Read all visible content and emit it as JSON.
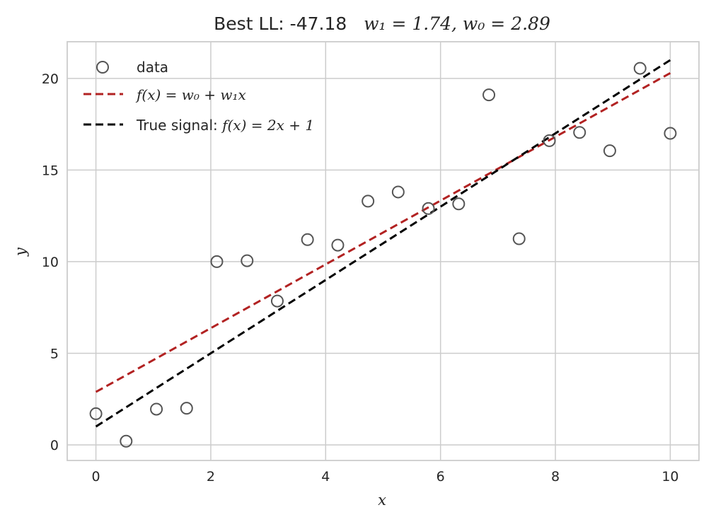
{
  "chart_data": {
    "type": "scatter",
    "title": {
      "prefix": "Best LL: -47.18   ",
      "formula": "w₁ = 1.74, w₀ = 2.89"
    },
    "xlabel": "x",
    "ylabel": "y",
    "xlim": [
      -0.5,
      10.5
    ],
    "ylim": [
      -0.85,
      22.0
    ],
    "xticks": [
      0,
      2,
      4,
      6,
      8,
      10
    ],
    "yticks": [
      0,
      5,
      10,
      15,
      20
    ],
    "grid": true,
    "legend_position": "top-left",
    "series": [
      {
        "name": "data",
        "kind": "scatter",
        "color": "#555555",
        "x": [
          0.0,
          0.526,
          1.053,
          1.579,
          2.105,
          2.632,
          3.158,
          3.684,
          4.211,
          4.737,
          5.263,
          5.789,
          6.316,
          6.842,
          7.368,
          7.895,
          8.421,
          8.947,
          9.474,
          10.0
        ],
        "y": [
          1.7,
          0.2,
          1.95,
          2.0,
          10.0,
          10.05,
          7.85,
          11.2,
          10.9,
          13.3,
          13.8,
          12.9,
          13.15,
          19.1,
          11.25,
          16.6,
          17.05,
          16.05,
          20.55,
          17.0
        ]
      },
      {
        "name": "f(x) = w₀ + w₁x",
        "kind": "line",
        "dash": "dashed",
        "color": "#b22222",
        "x": [
          0,
          10
        ],
        "y": [
          2.89,
          20.29
        ]
      },
      {
        "name": "True signal: f(x) = 2x + 1",
        "kind": "line",
        "dash": "dashed",
        "color": "#000000",
        "x": [
          0,
          10
        ],
        "y": [
          1,
          21
        ]
      }
    ],
    "legend": {
      "data_label": "data",
      "fit_label": "f(x) = w₀ + w₁x",
      "true_prefix": "True signal: ",
      "true_formula": "f(x) = 2x + 1"
    }
  }
}
